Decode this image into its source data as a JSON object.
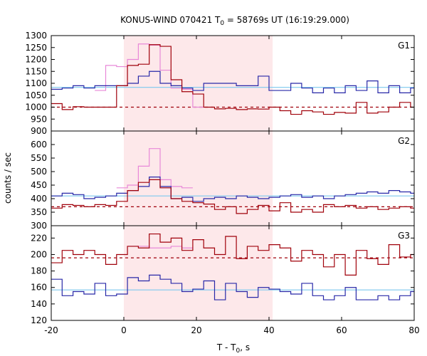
{
  "chart_data": {
    "type": "line",
    "title": "KONUS-WIND 070421 T",
    "title_sub": "0",
    "title_rest": " = 58769s UT (16:19:29.000)",
    "xlabel": "T - T",
    "xlabel_sub": "0",
    "xlabel_rest": ", s",
    "ylabel": "counts / sec",
    "xlim": [
      -20,
      80
    ],
    "x_ticks": [
      -20,
      0,
      20,
      40,
      60,
      80
    ],
    "highlight_interval": [
      0,
      41
    ],
    "colors": {
      "red": "#a0000a",
      "blue": "#2828a8",
      "pink": "#e888d8",
      "cyan": "#7cc8ee",
      "highlight": "#fde8ea"
    },
    "panels": [
      {
        "label": "G1",
        "ylim": [
          900,
          1300
        ],
        "y_ticks": [
          900,
          950,
          1000,
          1050,
          1100,
          1150,
          1200,
          1250,
          1300
        ],
        "background_level": 1000,
        "fit_level": 1083,
        "series": [
          {
            "color": "red",
            "x": [
              -20,
              -17,
              -14,
              -11,
              -8,
              -5,
              -2,
              1,
              4,
              7,
              10,
              13,
              16,
              19,
              22,
              25,
              28,
              31,
              34,
              37,
              40,
              43,
              46,
              49,
              52,
              55,
              58,
              61,
              64,
              67,
              70,
              73,
              76,
              79
            ],
            "y": [
              1015,
              990,
              1002,
              1000,
              1000,
              1000,
              1090,
              1175,
              1180,
              1262,
              1255,
              1115,
              1065,
              1055,
              1000,
              993,
              995,
              990,
              993,
              992,
              1000,
              985,
              970,
              985,
              980,
              970,
              978,
              975,
              1020,
              975,
              980,
              1000,
              1020,
              1000
            ]
          },
          {
            "color": "blue",
            "x": [
              -20,
              -17,
              -14,
              -11,
              -8,
              -5,
              -2,
              1,
              4,
              7,
              10,
              13,
              16,
              19,
              22,
              25,
              28,
              31,
              34,
              37,
              40,
              43,
              46,
              49,
              52,
              55,
              58,
              61,
              64,
              67,
              70,
              73,
              76,
              79
            ],
            "y": [
              1075,
              1080,
              1090,
              1080,
              1090,
              1090,
              1090,
              1100,
              1130,
              1150,
              1100,
              1090,
              1080,
              1070,
              1100,
              1100,
              1100,
              1090,
              1090,
              1130,
              1070,
              1070,
              1100,
              1080,
              1060,
              1080,
              1060,
              1090,
              1070,
              1110,
              1060,
              1090,
              1060,
              1080
            ]
          },
          {
            "color": "pink",
            "x": [
              -8,
              -5,
              -2,
              1,
              4,
              7,
              10,
              13,
              16,
              19
            ],
            "y": [
              1070,
              1175,
              1170,
              1200,
              1265,
              1260,
              1155,
              1080,
              1075,
              1000
            ]
          }
        ]
      },
      {
        "label": "G2",
        "ylim": [
          300,
          650
        ],
        "y_ticks": [
          300,
          350,
          400,
          450,
          500,
          550,
          600
        ],
        "background_level": 370,
        "fit_level": 410,
        "series": [
          {
            "color": "red",
            "x": [
              -20,
              -17,
              -14,
              -11,
              -8,
              -5,
              -2,
              1,
              4,
              7,
              10,
              13,
              16,
              19,
              22,
              25,
              28,
              31,
              34,
              37,
              40,
              43,
              46,
              49,
              52,
              55,
              58,
              61,
              64,
              67,
              70,
              73,
              76,
              79
            ],
            "y": [
              365,
              378,
              375,
              370,
              378,
              375,
              390,
              430,
              460,
              470,
              440,
              400,
              390,
              385,
              380,
              360,
              370,
              345,
              360,
              375,
              355,
              385,
              350,
              360,
              350,
              378,
              370,
              375,
              365,
              370,
              360,
              365,
              370,
              365
            ]
          },
          {
            "color": "blue",
            "x": [
              -20,
              -17,
              -14,
              -11,
              -8,
              -5,
              -2,
              1,
              4,
              7,
              10,
              13,
              16,
              19,
              22,
              25,
              28,
              31,
              34,
              37,
              40,
              43,
              46,
              49,
              52,
              55,
              58,
              61,
              64,
              67,
              70,
              73,
              76,
              79
            ],
            "y": [
              410,
              420,
              415,
              400,
              405,
              410,
              420,
              430,
              445,
              480,
              445,
              400,
              405,
              390,
              400,
              405,
              400,
              410,
              405,
              400,
              405,
              410,
              415,
              405,
              410,
              400,
              410,
              415,
              420,
              425,
              420,
              430,
              425,
              420
            ]
          },
          {
            "color": "pink",
            "x": [
              -2,
              1,
              4,
              7,
              10,
              13,
              16
            ],
            "y": [
              440,
              450,
              520,
              585,
              470,
              445,
              440
            ]
          }
        ]
      },
      {
        "label": "G3",
        "ylim": [
          120,
          235
        ],
        "y_ticks": [
          120,
          140,
          160,
          180,
          200,
          220
        ],
        "background_level": 196,
        "fit_level": 157,
        "series": [
          {
            "color": "red",
            "x": [
              -20,
              -17,
              -14,
              -11,
              -8,
              -5,
              -2,
              1,
              4,
              7,
              10,
              13,
              16,
              19,
              22,
              25,
              28,
              31,
              34,
              37,
              40,
              43,
              46,
              49,
              52,
              55,
              58,
              61,
              64,
              67,
              70,
              73,
              76,
              79
            ],
            "y": [
              190,
              205,
              200,
              205,
              200,
              188,
              200,
              210,
              208,
              225,
              215,
              220,
              205,
              218,
              208,
              200,
              222,
              195,
              210,
              205,
              212,
              208,
              192,
              205,
              200,
              185,
              200,
              175,
              205,
              195,
              188,
              212,
              197,
              200
            ]
          },
          {
            "color": "blue",
            "x": [
              -20,
              -17,
              -14,
              -11,
              -8,
              -5,
              -2,
              1,
              4,
              7,
              10,
              13,
              16,
              19,
              22,
              25,
              28,
              31,
              34,
              37,
              40,
              43,
              46,
              49,
              52,
              55,
              58,
              61,
              64,
              67,
              70,
              73,
              76,
              79
            ],
            "y": [
              170,
              150,
              155,
              152,
              165,
              150,
              152,
              172,
              168,
              175,
              170,
              165,
              155,
              158,
              168,
              145,
              165,
              155,
              148,
              160,
              158,
              155,
              152,
              165,
              150,
              145,
              150,
              160,
              145,
              145,
              150,
              145,
              150,
              155
            ]
          },
          {
            "color": "pink",
            "x": [
              1,
              4,
              7,
              10,
              13,
              16
            ],
            "y": [
              210,
              210,
              208,
              208,
              210,
              208
            ]
          }
        ]
      }
    ]
  }
}
